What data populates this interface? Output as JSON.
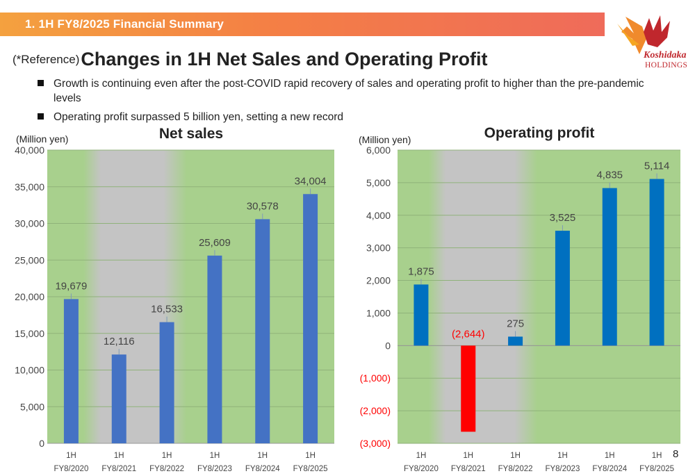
{
  "header": {
    "title": "1. 1H FY8/2025 Financial Summary"
  },
  "logo": {
    "name": "Koshidaka",
    "sub": "HOLDINGS"
  },
  "title": {
    "reference": "(*Reference)",
    "main": "Changes in 1H Net Sales and Operating Profit"
  },
  "bullets": [
    "Growth is continuing even after the post-COVID rapid recovery of sales and operating profit to higher than the pre-pandemic levels",
    "Operating profit surpassed 5 billion yen, setting a new record"
  ],
  "page_number": "8",
  "chart_data": [
    {
      "type": "bar",
      "title": "Net sales",
      "ylabel": "(Million yen)",
      "categories": [
        "1H FY8/2020",
        "1H FY8/2021",
        "1H FY8/2022",
        "1H FY8/2023",
        "1H FY8/2024",
        "1H FY8/2025"
      ],
      "values": [
        19679,
        12116,
        16533,
        25609,
        30578,
        34004
      ],
      "value_labels": [
        "19,679",
        "12,116",
        "16,533",
        "25,609",
        "30,578",
        "34,004"
      ],
      "ylim": [
        0,
        40000
      ],
      "yticks": [
        0,
        5000,
        10000,
        15000,
        20000,
        25000,
        30000,
        35000,
        40000
      ],
      "ytick_labels": [
        "0",
        "5,000",
        "10,000",
        "15,000",
        "20,000",
        "25,000",
        "30,000",
        "35,000",
        "40,000"
      ],
      "bar_color": "#4472c4",
      "background": {
        "covid_period": "#c4c4c4",
        "normal": "#a8d08d"
      }
    },
    {
      "type": "bar",
      "title": "Operating profit",
      "ylabel": "(Million yen)",
      "categories": [
        "1H FY8/2020",
        "1H FY8/2021",
        "1H FY8/2022",
        "1H FY8/2023",
        "1H FY8/2024",
        "1H FY8/2025"
      ],
      "values": [
        1875,
        -2644,
        275,
        3525,
        4835,
        5114
      ],
      "value_labels": [
        "1,875",
        "(2,644)",
        "275",
        "3,525",
        "4,835",
        "5,114"
      ],
      "ylim": [
        -3000,
        6000
      ],
      "yticks": [
        -3000,
        -2000,
        -1000,
        0,
        1000,
        2000,
        3000,
        4000,
        5000,
        6000
      ],
      "ytick_labels": [
        "(3,000)",
        "(2,000)",
        "(1,000)",
        "0",
        "1,000",
        "2,000",
        "3,000",
        "4,000",
        "5,000",
        "6,000"
      ],
      "bar_color": "#0070c0",
      "negative_color": "#ff0000",
      "background": {
        "covid_period": "#c4c4c4",
        "normal": "#a8d08d"
      }
    }
  ]
}
